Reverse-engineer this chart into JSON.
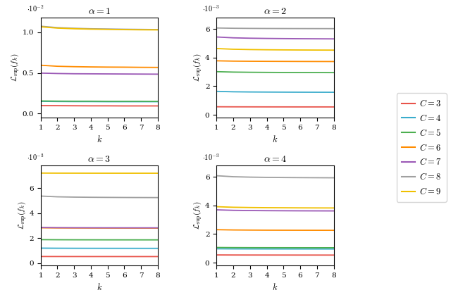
{
  "k_values": [
    1,
    2,
    3,
    4,
    5,
    6,
    7,
    8
  ],
  "C_values": [
    3,
    4,
    5,
    6,
    7,
    8,
    9
  ],
  "colors": {
    "3": "#e8534a",
    "4": "#3aaccc",
    "5": "#4caf50",
    "6": "#ff8c00",
    "7": "#9b59b6",
    "8": "#a0a0a0",
    "9": "#f0c000"
  },
  "data": {
    "alpha1": {
      "3": [
        0.00098,
        0.00097,
        0.00096,
        0.00095,
        0.00095,
        0.00094,
        0.00094,
        0.00094
      ],
      "4": [
        0.0015,
        0.00148,
        0.00147,
        0.00147,
        0.00146,
        0.00146,
        0.00146,
        0.00146
      ],
      "5": [
        0.00155,
        0.00153,
        0.00152,
        0.00152,
        0.00151,
        0.00151,
        0.00151,
        0.0015
      ],
      "6": [
        0.00595,
        0.00582,
        0.00577,
        0.00574,
        0.00572,
        0.00571,
        0.00569,
        0.00568
      ],
      "7": [
        0.00498,
        0.00493,
        0.0049,
        0.00489,
        0.00488,
        0.00487,
        0.00486,
        0.00485
      ],
      "8": [
        0.01075,
        0.01058,
        0.0105,
        0.01044,
        0.01041,
        0.01038,
        0.01036,
        0.01034
      ],
      "9": [
        0.01068,
        0.01052,
        0.01044,
        0.01039,
        0.01036,
        0.01033,
        0.01031,
        0.0103
      ]
    },
    "alpha2": {
      "3": [
        0.00056,
        0.000556,
        0.000554,
        0.000552,
        0.000551,
        0.00055,
        0.00055,
        0.000549
      ],
      "4": [
        0.00164,
        0.00161,
        0.001597,
        0.00159,
        0.001585,
        0.001581,
        0.001578,
        0.001576
      ],
      "5": [
        0.00302,
        0.00299,
        0.002977,
        0.002969,
        0.002963,
        0.002959,
        0.002956,
        0.002953
      ],
      "6": [
        0.00378,
        0.003758,
        0.003748,
        0.003742,
        0.003738,
        0.003734,
        0.003731,
        0.003729
      ],
      "7": [
        0.00545,
        0.00539,
        0.005363,
        0.005347,
        0.005336,
        0.005328,
        0.005321,
        0.005316
      ],
      "8": [
        0.00608,
        0.00606,
        0.00605,
        0.006044,
        0.00604,
        0.006037,
        0.006035,
        0.006033
      ],
      "9": [
        0.00464,
        0.00459,
        0.004568,
        0.004554,
        0.004545,
        0.004538,
        0.004533,
        0.004529
      ]
    },
    "alpha3": {
      "3": [
        0.00052,
        0.000518,
        0.000517,
        0.000516,
        0.000516,
        0.000515,
        0.000515,
        0.000515
      ],
      "4": [
        0.00119,
        0.001183,
        0.001179,
        0.001177,
        0.001176,
        0.001175,
        0.001174,
        0.001173
      ],
      "5": [
        0.00187,
        0.001862,
        0.001858,
        0.001856,
        0.001854,
        0.001853,
        0.001852,
        0.001852
      ],
      "6": [
        0.00282,
        0.002808,
        0.002803,
        0.0028,
        0.002798,
        0.002796,
        0.002795,
        0.002794
      ],
      "7": [
        0.00284,
        0.002828,
        0.002823,
        0.00282,
        0.002818,
        0.002816,
        0.002815,
        0.002814
      ],
      "8": [
        0.00536,
        0.0053,
        0.005276,
        0.005262,
        0.005253,
        0.005246,
        0.005241,
        0.005237
      ],
      "9": [
        0.0072,
        0.007195,
        0.007193,
        0.007191,
        0.00719,
        0.007189,
        0.007189,
        0.007188
      ]
    },
    "alpha4": {
      "3": [
        0.00054,
        0.000536,
        0.000534,
        0.000533,
        0.000532,
        0.000531,
        0.000531,
        0.00053
      ],
      "4": [
        0.00097,
        0.000963,
        0.00096,
        0.000958,
        0.000957,
        0.000956,
        0.000955,
        0.000955
      ],
      "5": [
        0.00106,
        0.001052,
        0.001048,
        0.001046,
        0.001045,
        0.001044,
        0.001043,
        0.001043
      ],
      "6": [
        0.00231,
        0.00229,
        0.002281,
        0.002275,
        0.002272,
        0.002269,
        0.002267,
        0.002265
      ],
      "7": [
        0.0037,
        0.003665,
        0.00365,
        0.003641,
        0.003635,
        0.00363,
        0.003627,
        0.003624
      ],
      "8": [
        0.00609,
        0.00602,
        0.005991,
        0.005974,
        0.005963,
        0.005955,
        0.005949,
        0.005944
      ],
      "9": [
        0.00392,
        0.00388,
        0.003862,
        0.003851,
        0.003844,
        0.003838,
        0.003834,
        0.003831
      ]
    }
  },
  "scale_labels": {
    "alpha1": "·10⁻²",
    "alpha2": "·10⁻³",
    "alpha3": "·10⁻³",
    "alpha4": "·10⁻³"
  },
  "scale_factors": {
    "alpha1": 0.01,
    "alpha2": 0.001,
    "alpha3": 0.001,
    "alpha4": 0.001
  },
  "alpha_labels": [
    "\\alpha = 1",
    "\\alpha = 2",
    "\\alpha = 3",
    "\\alpha = 4"
  ],
  "alpha_keys": [
    "alpha1",
    "alpha2",
    "alpha3",
    "alpha4"
  ],
  "yticks": {
    "alpha1": [
      0.0,
      0.5,
      1.0
    ],
    "alpha2": [
      0.0,
      2.0,
      4.0,
      6.0
    ],
    "alpha3": [
      0.0,
      2.0,
      4.0,
      6.0
    ],
    "alpha4": [
      0.0,
      2.0,
      4.0,
      6.0
    ]
  },
  "ylims": {
    "alpha1": [
      -0.05,
      1.18
    ],
    "alpha2": [
      -0.2,
      6.8
    ],
    "alpha3": [
      -0.2,
      7.8
    ],
    "alpha4": [
      -0.2,
      6.8
    ]
  }
}
